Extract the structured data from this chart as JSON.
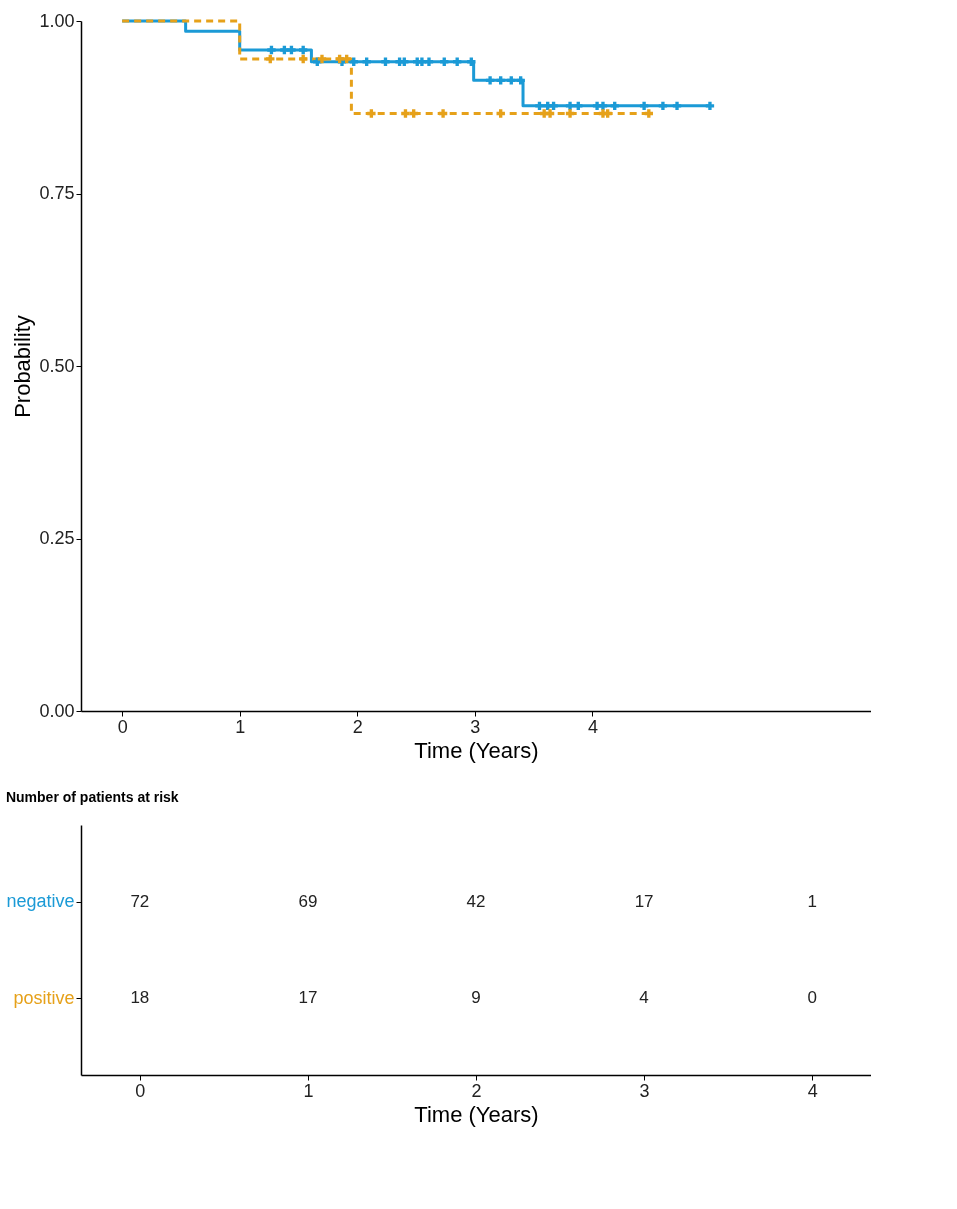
{
  "chart_data": [
    {
      "type": "step",
      "xlabel": "Time (Years)",
      "ylabel": "Probability",
      "xlim": [
        -0.35,
        6.37
      ],
      "xticks": [
        0,
        1,
        2,
        3,
        4
      ],
      "ylim": [
        0,
        1
      ],
      "yticks": [
        {
          "value": 0,
          "label": "0.00"
        },
        {
          "value": 0.25,
          "label": "0.25"
        },
        {
          "value": 0.5,
          "label": "0.50"
        },
        {
          "value": 0.75,
          "label": "0.75"
        },
        {
          "value": 1,
          "label": "1.00"
        }
      ],
      "grid": false,
      "series": [
        {
          "color": "#1b9ad6",
          "line_style": "solid",
          "marker": "none",
          "x": [
            0,
            0.54,
            1.0,
            1.61,
            2.99,
            3.41,
            5.0
          ],
          "values": [
            1,
            0.985,
            0.958,
            0.941,
            0.914,
            0.877,
            0.877
          ]
        },
        {
          "color": "#e6a11a",
          "line_style": "dashed",
          "marker": "none",
          "x": [
            0,
            1.0,
            1.95,
            4.51
          ],
          "values": [
            1,
            0.945,
            0.866,
            0.866
          ]
        },
        {
          "type": "scatter",
          "marker": "cross",
          "color": "#1b9ad6",
          "x": [
            1.27,
            1.38,
            1.44,
            1.54,
            1.66,
            1.87,
            1.97,
            2.08,
            2.24,
            2.36,
            2.4,
            2.51,
            2.55,
            2.61,
            2.74,
            2.85,
            2.97,
            3.13,
            3.22,
            3.31,
            3.39,
            3.55,
            3.62,
            3.67,
            3.81,
            3.88,
            4.04,
            4.09,
            4.19,
            4.44,
            4.6,
            4.72,
            5.0
          ],
          "values": [
            0.958,
            0.958,
            0.958,
            0.958,
            0.941,
            0.941,
            0.941,
            0.941,
            0.941,
            0.941,
            0.941,
            0.941,
            0.941,
            0.941,
            0.941,
            0.941,
            0.941,
            0.914,
            0.914,
            0.914,
            0.914,
            0.877,
            0.877,
            0.877,
            0.877,
            0.877,
            0.877,
            0.877,
            0.877,
            0.877,
            0.877,
            0.877,
            0.877
          ]
        },
        {
          "type": "scatter",
          "marker": "cross",
          "color": "#e6a11a",
          "x": [
            1.26,
            1.54,
            1.7,
            1.85,
            1.91,
            2.12,
            2.41,
            2.48,
            2.73,
            3.22,
            3.59,
            3.64,
            3.81,
            4.09,
            4.13,
            4.48
          ],
          "values": [
            0.945,
            0.945,
            0.945,
            0.945,
            0.945,
            0.866,
            0.866,
            0.866,
            0.866,
            0.866,
            0.866,
            0.866,
            0.866,
            0.866,
            0.866,
            0.866
          ]
        }
      ]
    },
    {
      "type": "heatmap",
      "title": "Number of patients at risk",
      "xlabel": "Time (Years)",
      "categories": [
        "0",
        "1",
        "2",
        "3",
        "4"
      ],
      "y_categories": [
        "negative",
        "positive"
      ],
      "cells": [
        [
          72,
          69,
          42,
          17,
          1
        ],
        [
          18,
          17,
          9,
          4,
          0
        ]
      ],
      "data_labels": true
    }
  ]
}
